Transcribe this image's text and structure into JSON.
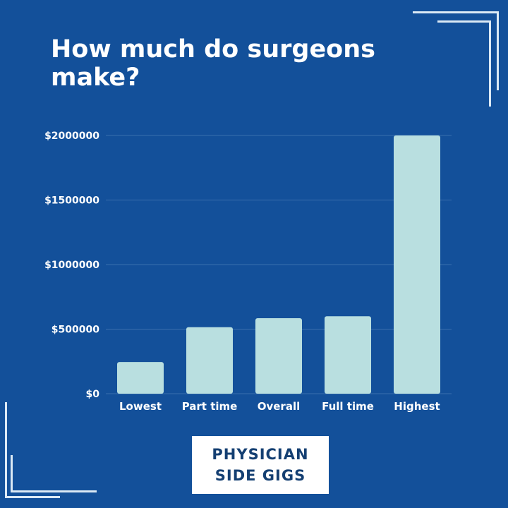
{
  "title": "How much do surgeons make?",
  "brand": {
    "line1": "PHYSICIAN",
    "line2": "SIDE GIGS"
  },
  "colors": {
    "background": "#13509a",
    "bar": "#b9dfe0",
    "gridline": "#3a6fae",
    "text": "#ffffff",
    "brand_text": "#143f72"
  },
  "chart_data": {
    "type": "bar",
    "title": "How much do surgeons make?",
    "categories": [
      "Lowest",
      "Part time",
      "Overall",
      "Full time",
      "Highest"
    ],
    "values": [
      245000,
      515000,
      585000,
      600000,
      2000000
    ],
    "ylim": [
      0,
      2000000
    ],
    "yticks": [
      0,
      500000,
      1000000,
      1500000,
      2000000
    ],
    "ytick_labels": [
      "$0",
      "$500000",
      "$1000000",
      "$1500000",
      "$2000000"
    ],
    "xlabel": "",
    "ylabel": "",
    "grid": true,
    "legend": "none"
  }
}
